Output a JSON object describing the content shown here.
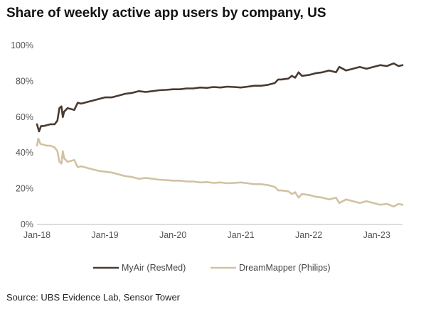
{
  "chart_data": {
    "type": "line",
    "title": "Share of weekly active app users by company, US",
    "xlabel": "",
    "ylabel": "",
    "source": "Source: UBS Evidence Lab, Sensor Tower",
    "ylim": [
      0,
      100
    ],
    "y_ticks": [
      "0%",
      "20%",
      "40%",
      "60%",
      "80%",
      "100%"
    ],
    "x_ticks": [
      {
        "label": "Jan-18",
        "t": 2018.0
      },
      {
        "label": "Jan-19",
        "t": 2019.0
      },
      {
        "label": "Jan-20",
        "t": 2020.0
      },
      {
        "label": "Jan-21",
        "t": 2021.0
      },
      {
        "label": "Jan-22",
        "t": 2022.0
      },
      {
        "label": "Jan-23",
        "t": 2023.0
      }
    ],
    "grid": false,
    "legend": "bottom",
    "series": [
      {
        "name": "MyAir (ResMed)",
        "color": "#4a3a30",
        "points": [
          [
            2018.0,
            56
          ],
          [
            2018.03,
            52
          ],
          [
            2018.06,
            55
          ],
          [
            2018.1,
            55
          ],
          [
            2018.15,
            55.5
          ],
          [
            2018.2,
            56
          ],
          [
            2018.26,
            56
          ],
          [
            2018.3,
            58
          ],
          [
            2018.33,
            65
          ],
          [
            2018.36,
            66
          ],
          [
            2018.38,
            60
          ],
          [
            2018.4,
            63
          ],
          [
            2018.45,
            65
          ],
          [
            2018.5,
            64.5
          ],
          [
            2018.55,
            64
          ],
          [
            2018.6,
            68
          ],
          [
            2018.65,
            67.5
          ],
          [
            2018.7,
            68
          ],
          [
            2018.8,
            69
          ],
          [
            2018.9,
            70
          ],
          [
            2019.0,
            71
          ],
          [
            2019.1,
            71
          ],
          [
            2019.2,
            72
          ],
          [
            2019.3,
            73
          ],
          [
            2019.4,
            73.5
          ],
          [
            2019.5,
            74.5
          ],
          [
            2019.6,
            74
          ],
          [
            2019.7,
            74.5
          ],
          [
            2019.8,
            75
          ],
          [
            2019.9,
            75.2
          ],
          [
            2020.0,
            75.5
          ],
          [
            2020.1,
            75.5
          ],
          [
            2020.2,
            76
          ],
          [
            2020.3,
            76
          ],
          [
            2020.4,
            76.5
          ],
          [
            2020.5,
            76.3
          ],
          [
            2020.6,
            76.8
          ],
          [
            2020.7,
            76.5
          ],
          [
            2020.8,
            77
          ],
          [
            2020.9,
            76.8
          ],
          [
            2021.0,
            76.5
          ],
          [
            2021.1,
            77
          ],
          [
            2021.2,
            77.5
          ],
          [
            2021.3,
            77.5
          ],
          [
            2021.4,
            78
          ],
          [
            2021.5,
            79
          ],
          [
            2021.55,
            81
          ],
          [
            2021.6,
            81
          ],
          [
            2021.7,
            81.5
          ],
          [
            2021.75,
            83
          ],
          [
            2021.8,
            82
          ],
          [
            2021.85,
            85
          ],
          [
            2021.9,
            83
          ],
          [
            2022.0,
            83.5
          ],
          [
            2022.1,
            84.5
          ],
          [
            2022.2,
            85
          ],
          [
            2022.3,
            86
          ],
          [
            2022.4,
            85
          ],
          [
            2022.45,
            88
          ],
          [
            2022.55,
            86
          ],
          [
            2022.65,
            87
          ],
          [
            2022.75,
            88
          ],
          [
            2022.85,
            87
          ],
          [
            2022.95,
            88
          ],
          [
            2023.05,
            89
          ],
          [
            2023.15,
            88.5
          ],
          [
            2023.25,
            90
          ],
          [
            2023.32,
            88.5
          ],
          [
            2023.38,
            89
          ]
        ]
      },
      {
        "name": "DreamMapper (Philips)",
        "color": "#d1c2a3",
        "points": [
          [
            2018.0,
            44
          ],
          [
            2018.02,
            48
          ],
          [
            2018.05,
            45
          ],
          [
            2018.1,
            44.5
          ],
          [
            2018.15,
            44
          ],
          [
            2018.2,
            44
          ],
          [
            2018.26,
            43
          ],
          [
            2018.3,
            41
          ],
          [
            2018.33,
            35
          ],
          [
            2018.36,
            34
          ],
          [
            2018.38,
            41
          ],
          [
            2018.4,
            37
          ],
          [
            2018.45,
            35
          ],
          [
            2018.5,
            35.5
          ],
          [
            2018.55,
            36
          ],
          [
            2018.6,
            32
          ],
          [
            2018.65,
            32.5
          ],
          [
            2018.7,
            32
          ],
          [
            2018.8,
            31
          ],
          [
            2018.9,
            30
          ],
          [
            2019.0,
            29.5
          ],
          [
            2019.1,
            29
          ],
          [
            2019.2,
            28
          ],
          [
            2019.3,
            27
          ],
          [
            2019.4,
            26.5
          ],
          [
            2019.5,
            25.5
          ],
          [
            2019.6,
            26
          ],
          [
            2019.7,
            25.5
          ],
          [
            2019.8,
            25
          ],
          [
            2019.9,
            24.8
          ],
          [
            2020.0,
            24.5
          ],
          [
            2020.1,
            24.5
          ],
          [
            2020.2,
            24
          ],
          [
            2020.3,
            24
          ],
          [
            2020.4,
            23.5
          ],
          [
            2020.5,
            23.7
          ],
          [
            2020.6,
            23.2
          ],
          [
            2020.7,
            23.5
          ],
          [
            2020.8,
            23
          ],
          [
            2020.9,
            23.2
          ],
          [
            2021.0,
            23.5
          ],
          [
            2021.1,
            23
          ],
          [
            2021.2,
            22.5
          ],
          [
            2021.3,
            22.5
          ],
          [
            2021.4,
            22
          ],
          [
            2021.5,
            21
          ],
          [
            2021.55,
            19
          ],
          [
            2021.6,
            19
          ],
          [
            2021.7,
            18.5
          ],
          [
            2021.75,
            17
          ],
          [
            2021.8,
            18
          ],
          [
            2021.85,
            15
          ],
          [
            2021.9,
            17
          ],
          [
            2022.0,
            16.5
          ],
          [
            2022.1,
            15.5
          ],
          [
            2022.2,
            15
          ],
          [
            2022.3,
            14
          ],
          [
            2022.4,
            15
          ],
          [
            2022.45,
            12
          ],
          [
            2022.55,
            14
          ],
          [
            2022.65,
            13
          ],
          [
            2022.75,
            12
          ],
          [
            2022.85,
            13
          ],
          [
            2022.95,
            12
          ],
          [
            2023.05,
            11
          ],
          [
            2023.15,
            11.5
          ],
          [
            2023.25,
            10
          ],
          [
            2023.32,
            11.5
          ],
          [
            2023.38,
            11
          ]
        ]
      }
    ]
  }
}
